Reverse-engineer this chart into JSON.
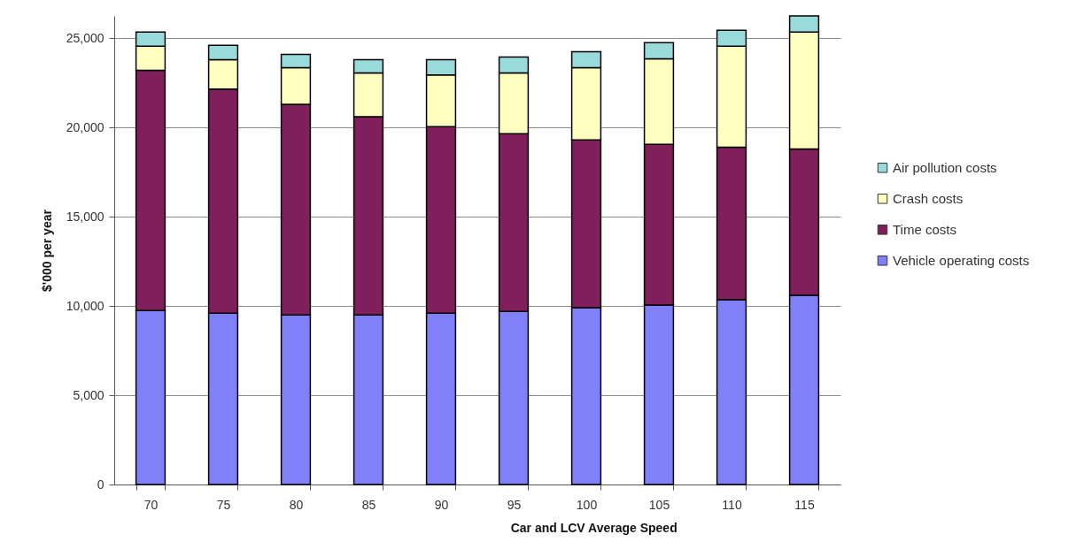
{
  "chart_data": {
    "type": "bar",
    "stacked": true,
    "xlabel": "Car and LCV Average Speed",
    "ylabel": "$'000 per year",
    "categories": [
      "70",
      "75",
      "80",
      "85",
      "90",
      "95",
      "100",
      "105",
      "110",
      "115"
    ],
    "ylim": [
      0,
      26250
    ],
    "yticks": [
      0,
      {
        "value": 5000,
        "label": "5,000"
      },
      {
        "value": 10000,
        "label": "10,000"
      },
      {
        "value": 15000,
        "label": "15,000"
      },
      {
        "value": 20000,
        "label": "20,000"
      },
      {
        "value": 25000,
        "label": "25,000"
      }
    ],
    "grid": "y",
    "legend": "right",
    "series": [
      {
        "name": "Vehicle operating costs",
        "color": "#8080f8",
        "values": [
          9750,
          9600,
          9500,
          9500,
          9600,
          9700,
          9900,
          10050,
          10350,
          10600
        ]
      },
      {
        "name": "Time costs",
        "color": "#7f1f5c",
        "values": [
          13450,
          12550,
          11800,
          11100,
          10450,
          9950,
          9400,
          9000,
          8550,
          8200
        ]
      },
      {
        "name": "Crash costs",
        "color": "#ffffc0",
        "values": [
          1350,
          1650,
          2050,
          2450,
          2900,
          3400,
          4050,
          4800,
          5650,
          6550
        ]
      },
      {
        "name": "Air pollution  costs",
        "color": "#99dada",
        "values": [
          800,
          800,
          750,
          750,
          850,
          900,
          900,
          900,
          900,
          900
        ]
      }
    ]
  }
}
